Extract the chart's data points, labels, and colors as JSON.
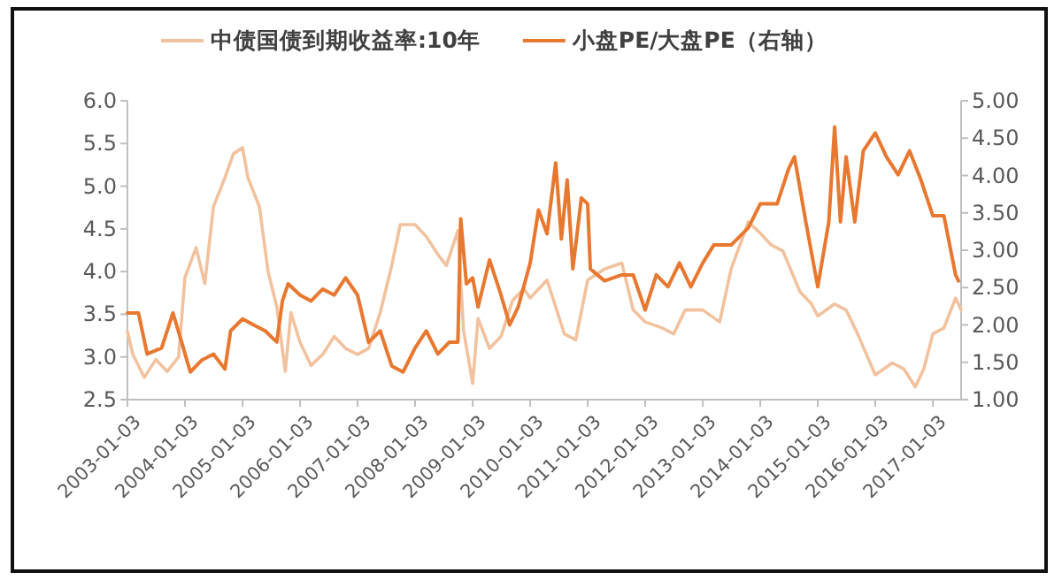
{
  "chart_data": {
    "type": "line",
    "legend": "top",
    "xlim": [
      "2003-01-03",
      "2017-07-01"
    ],
    "xticks": [
      {
        "value": "2003-01-03",
        "label": "2003-01-03"
      },
      {
        "value": "2004-01-03",
        "label": "2004-01-03"
      },
      {
        "value": "2005-01-03",
        "label": "2005-01-03"
      },
      {
        "value": "2006-01-03",
        "label": "2006-01-03"
      },
      {
        "value": "2007-01-03",
        "label": "2007-01-03"
      },
      {
        "value": "2008-01-03",
        "label": "2008-01-03"
      },
      {
        "value": "2009-01-03",
        "label": "2009-01-03"
      },
      {
        "value": "2010-01-03",
        "label": "2010-01-03"
      },
      {
        "value": "2011-01-03",
        "label": "2011-01-03"
      },
      {
        "value": "2012-01-03",
        "label": "2012-01-03"
      },
      {
        "value": "2013-01-03",
        "label": "2013-01-03"
      },
      {
        "value": "2014-01-03",
        "label": "2014-01-03"
      },
      {
        "value": "2015-01-03",
        "label": "2015-01-03"
      },
      {
        "value": "2016-01-03",
        "label": "2016-01-03"
      },
      {
        "value": "2017-01-03",
        "label": "2017-01-03"
      }
    ],
    "ylim": [
      2.5,
      6.0
    ],
    "yticks": [
      {
        "value": 2.5,
        "label": "2.5"
      },
      {
        "value": 3.0,
        "label": "3.0"
      },
      {
        "value": 3.5,
        "label": "3.5"
      },
      {
        "value": 4.0,
        "label": "4.0"
      },
      {
        "value": 4.5,
        "label": "4.5"
      },
      {
        "value": 5.0,
        "label": "5.0"
      },
      {
        "value": 5.5,
        "label": "5.5"
      },
      {
        "value": 6.0,
        "label": "6.0"
      }
    ],
    "y2lim": [
      1.0,
      5.0
    ],
    "y2ticks": [
      {
        "value": 1.0,
        "label": "1.00"
      },
      {
        "value": 1.5,
        "label": "1.50"
      },
      {
        "value": 2.0,
        "label": "2.00"
      },
      {
        "value": 2.5,
        "label": "2.50"
      },
      {
        "value": 3.0,
        "label": "3.00"
      },
      {
        "value": 3.5,
        "label": "3.50"
      },
      {
        "value": 4.0,
        "label": "4.00"
      },
      {
        "value": 4.5,
        "label": "4.50"
      },
      {
        "value": 5.0,
        "label": "5.00"
      }
    ],
    "series": [
      {
        "name": "中债国债到期收益率:10年",
        "color": "#f2c29f",
        "x": [
          "2003-01-03",
          "2003-02-06",
          "2003-04-20",
          "2003-07-02",
          "2003-09-13",
          "2003-11-24",
          "2004-01-03",
          "2004-03-14",
          "2004-05-08",
          "2004-07-02",
          "2004-09-13",
          "2004-11-06",
          "2005-01-03",
          "2005-02-06",
          "2005-04-20",
          "2005-06-14",
          "2005-08-08",
          "2005-10-01",
          "2005-11-06",
          "2006-01-03",
          "2006-03-14",
          "2006-05-27",
          "2006-08-08",
          "2006-10-19",
          "2007-01-03",
          "2007-03-14",
          "2007-05-27",
          "2007-08-08",
          "2007-10-01",
          "2008-01-03",
          "2008-03-14",
          "2008-05-27",
          "2008-07-20",
          "2008-10-01",
          "2008-11-06",
          "2009-01-03",
          "2009-02-06",
          "2009-04-20",
          "2009-07-02",
          "2009-09-13",
          "2009-11-24",
          "2010-01-03",
          "2010-04-20",
          "2010-08-08",
          "2010-10-19",
          "2011-01-03",
          "2011-04-20",
          "2011-08-08",
          "2011-10-19",
          "2012-01-03",
          "2012-04-20",
          "2012-07-02",
          "2012-09-13",
          "2013-01-03",
          "2013-04-20",
          "2013-07-02",
          "2013-10-19",
          "2014-01-03",
          "2014-03-14",
          "2014-05-27",
          "2014-09-13",
          "2014-11-24",
          "2015-01-03",
          "2015-04-20",
          "2015-07-02",
          "2015-09-13",
          "2016-01-03",
          "2016-04-20",
          "2016-07-02",
          "2016-09-13",
          "2016-11-06",
          "2017-01-03",
          "2017-03-14",
          "2017-05-27",
          "2017-07-01"
        ],
        "values": [
          3.3,
          3.03,
          2.76,
          2.97,
          2.83,
          3.0,
          3.93,
          4.28,
          3.86,
          4.76,
          5.1,
          5.38,
          5.45,
          5.1,
          4.76,
          4.0,
          3.59,
          2.83,
          3.52,
          3.17,
          2.9,
          3.03,
          3.24,
          3.1,
          3.03,
          3.1,
          3.52,
          4.07,
          4.55,
          4.55,
          4.41,
          4.2,
          4.07,
          4.48,
          3.31,
          2.69,
          3.45,
          3.1,
          3.24,
          3.66,
          3.8,
          3.69,
          3.9,
          3.27,
          3.2,
          3.9,
          4.03,
          4.1,
          3.55,
          3.41,
          3.34,
          3.27,
          3.55,
          3.55,
          3.41,
          4.03,
          4.58,
          4.45,
          4.31,
          4.24,
          3.76,
          3.62,
          3.48,
          3.62,
          3.55,
          3.27,
          2.79,
          2.93,
          2.86,
          2.65,
          2.86,
          3.27,
          3.34,
          3.69,
          3.55
        ]
      },
      {
        "name": "小盘PE/大盘PE（右轴）",
        "color": "#e8782f",
        "axis": "y2",
        "x": [
          "2003-01-03",
          "2003-03-14",
          "2003-05-08",
          "2003-08-08",
          "2003-10-19",
          "2003-12-13",
          "2004-02-06",
          "2004-04-20",
          "2004-07-02",
          "2004-09-13",
          "2004-10-19",
          "2005-01-03",
          "2005-03-14",
          "2005-05-27",
          "2005-08-08",
          "2005-09-13",
          "2005-10-19",
          "2006-01-03",
          "2006-03-14",
          "2006-05-27",
          "2006-08-08",
          "2006-10-19",
          "2007-01-03",
          "2007-03-14",
          "2007-05-27",
          "2007-08-08",
          "2007-10-19",
          "2008-01-03",
          "2008-03-14",
          "2008-05-27",
          "2008-08-08",
          "2008-10-01",
          "2008-10-19",
          "2008-11-24",
          "2009-01-03",
          "2009-02-06",
          "2009-04-20",
          "2009-07-02",
          "2009-08-26",
          "2009-10-19",
          "2010-01-03",
          "2010-02-25",
          "2010-04-20",
          "2010-06-14",
          "2010-07-20",
          "2010-08-26",
          "2010-10-01",
          "2010-11-24",
          "2011-01-03",
          "2011-01-20",
          "2011-04-20",
          "2011-08-08",
          "2011-10-19",
          "2012-01-03",
          "2012-03-14",
          "2012-05-27",
          "2012-08-08",
          "2012-10-19",
          "2013-01-03",
          "2013-03-14",
          "2013-07-02",
          "2013-10-19",
          "2014-01-03",
          "2014-04-20",
          "2014-07-02",
          "2014-08-08",
          "2014-10-19",
          "2015-01-03",
          "2015-03-14",
          "2015-04-20",
          "2015-05-27",
          "2015-07-02",
          "2015-08-26",
          "2015-10-19",
          "2016-01-03",
          "2016-03-14",
          "2016-05-27",
          "2016-08-08",
          "2016-10-19",
          "2017-01-03",
          "2017-03-14",
          "2017-05-27",
          "2017-06-14"
        ],
        "values": [
          2.16,
          2.16,
          1.61,
          1.69,
          2.16,
          1.77,
          1.37,
          1.53,
          1.61,
          1.41,
          1.92,
          2.08,
          2.0,
          1.92,
          1.77,
          2.32,
          2.55,
          2.4,
          2.32,
          2.48,
          2.4,
          2.63,
          2.4,
          1.77,
          1.92,
          1.45,
          1.37,
          1.69,
          1.92,
          1.61,
          1.77,
          1.77,
          3.42,
          2.55,
          2.63,
          2.24,
          2.87,
          2.4,
          2.0,
          2.24,
          2.83,
          3.54,
          3.22,
          4.17,
          3.15,
          3.94,
          2.75,
          3.7,
          3.62,
          2.75,
          2.59,
          2.67,
          2.67,
          2.2,
          2.67,
          2.51,
          2.83,
          2.51,
          2.83,
          3.07,
          3.07,
          3.3,
          3.62,
          3.62,
          4.09,
          4.25,
          3.38,
          2.51,
          3.38,
          4.65,
          3.38,
          4.25,
          3.38,
          4.33,
          4.57,
          4.25,
          4.01,
          4.33,
          3.94,
          3.46,
          3.46,
          2.67,
          2.59
        ]
      }
    ]
  }
}
